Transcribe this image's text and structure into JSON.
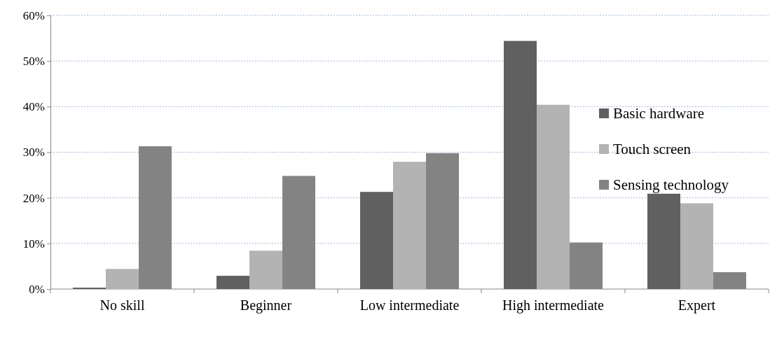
{
  "chart_data": {
    "type": "bar",
    "categories": [
      "No skill",
      "Beginner",
      "Low intermediate",
      "High intermediate",
      "Expert"
    ],
    "series": [
      {
        "name": "Basic hardware",
        "color": "#606060",
        "values": [
          0.3,
          2.9,
          21.3,
          54.4,
          20.9
        ]
      },
      {
        "name": "Touch screen",
        "color": "#b3b3b3",
        "values": [
          4.4,
          8.4,
          27.9,
          40.4,
          18.8
        ]
      },
      {
        "name": "Sensing technology",
        "color": "#838383",
        "values": [
          31.3,
          24.8,
          29.8,
          10.2,
          3.7
        ]
      }
    ],
    "ylim": [
      0,
      60
    ],
    "yticks": [
      {
        "value": 0,
        "label": "0%"
      },
      {
        "value": 10,
        "label": "10%"
      },
      {
        "value": 20,
        "label": "20%"
      },
      {
        "value": 30,
        "label": "30%"
      },
      {
        "value": 40,
        "label": "40%"
      },
      {
        "value": 50,
        "label": "50%"
      },
      {
        "value": 60,
        "label": "60%"
      }
    ],
    "grid": "y",
    "legend": "top right"
  }
}
